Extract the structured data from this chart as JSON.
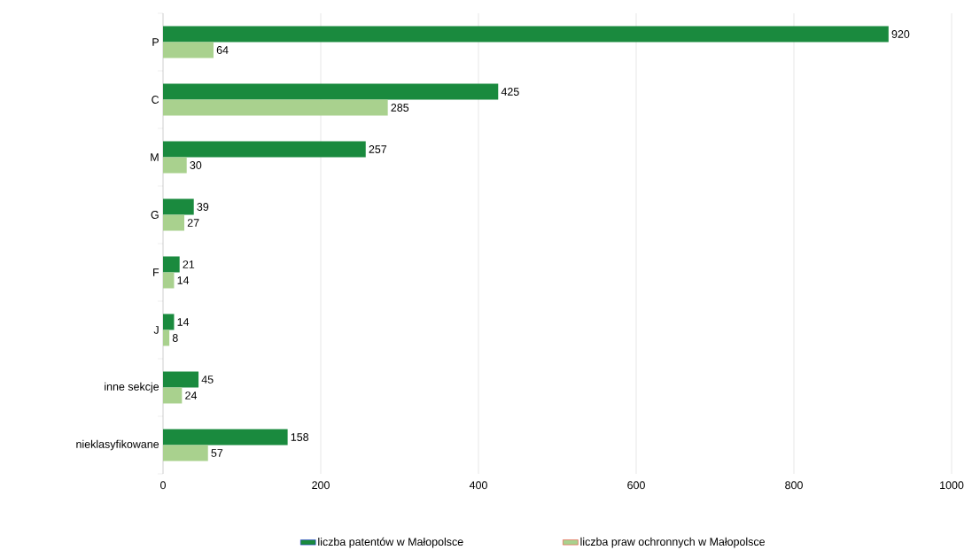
{
  "chart_data": {
    "type": "bar",
    "orientation": "horizontal",
    "categories": [
      "P",
      "C",
      "M",
      "G",
      "F",
      "J",
      "inne sekcje",
      "nieklasyfikowane"
    ],
    "series": [
      {
        "name": "liczba patentów w Małopolsce",
        "color": "#1a8a3e",
        "values": [
          920,
          425,
          257,
          39,
          21,
          14,
          45,
          158
        ]
      },
      {
        "name": "liczba praw ochronnych w Małopolsce",
        "color": "#a9d18e",
        "values": [
          64,
          285,
          30,
          27,
          14,
          8,
          24,
          57
        ]
      }
    ],
    "xlim": [
      0,
      1000
    ],
    "xticks": [
      0,
      200,
      400,
      600,
      800,
      1000
    ],
    "grid": "x",
    "legend": "bottom",
    "data_labels": true
  }
}
